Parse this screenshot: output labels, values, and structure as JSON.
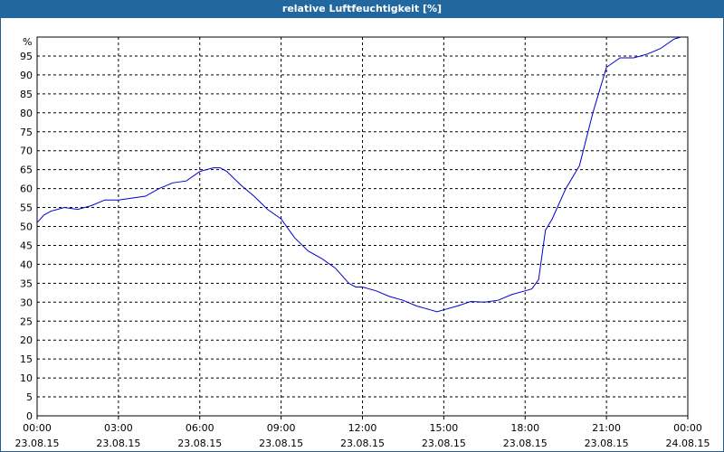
{
  "chart_data": {
    "type": "line",
    "title": "relative Luftfeuchtigkeit [%]",
    "y_unit": "%",
    "ylim": [
      0,
      100
    ],
    "yticks": [
      0,
      5,
      10,
      15,
      20,
      25,
      30,
      35,
      40,
      45,
      50,
      55,
      60,
      65,
      70,
      75,
      80,
      85,
      90,
      95
    ],
    "xlim": [
      "2015-08-23T00:00",
      "2015-08-24T00:00"
    ],
    "xticks": [
      {
        "time": "00:00",
        "date": "23.08.15"
      },
      {
        "time": "03:00",
        "date": "23.08.15"
      },
      {
        "time": "06:00",
        "date": "23.08.15"
      },
      {
        "time": "09:00",
        "date": "23.08.15"
      },
      {
        "time": "12:00",
        "date": "23.08.15"
      },
      {
        "time": "15:00",
        "date": "23.08.15"
      },
      {
        "time": "18:00",
        "date": "23.08.15"
      },
      {
        "time": "21:00",
        "date": "23.08.15"
      },
      {
        "time": "00:00",
        "date": "24.08.15"
      }
    ],
    "grid": true,
    "line_color": "#0000cc",
    "series": [
      {
        "x": [
          "00:00",
          "00:15",
          "00:30",
          "00:45",
          "01:00",
          "01:30",
          "02:00",
          "02:30",
          "03:00",
          "03:30",
          "04:00",
          "04:30",
          "05:00",
          "05:30",
          "06:00",
          "06:30",
          "06:45",
          "07:00",
          "07:30",
          "08:00",
          "08:30",
          "09:00",
          "09:30",
          "10:00",
          "10:30",
          "11:00",
          "11:30",
          "11:45",
          "12:00",
          "12:30",
          "13:00",
          "13:30",
          "14:00",
          "14:30",
          "14:45",
          "15:00",
          "15:30",
          "16:00",
          "16:30",
          "17:00",
          "17:30",
          "18:00",
          "18:15",
          "18:30",
          "18:45",
          "19:00",
          "19:30",
          "20:00",
          "20:30",
          "21:00",
          "21:30",
          "22:00",
          "22:30",
          "23:00",
          "23:30",
          "23:45"
        ],
        "y": [
          51,
          53,
          54,
          54.5,
          55,
          54.5,
          55.5,
          57,
          57,
          57.5,
          58,
          60,
          61.5,
          62,
          64.5,
          65.5,
          65.5,
          64.5,
          61,
          58,
          54.5,
          52,
          47,
          43.5,
          41.5,
          39,
          35,
          34,
          34,
          33,
          31.5,
          30.5,
          29,
          28,
          27.5,
          28,
          29,
          30.2,
          30,
          30.5,
          32,
          33,
          33.5,
          36,
          49,
          52,
          60,
          66,
          80,
          92,
          94.5,
          94.5,
          95.5,
          97,
          99.5,
          100
        ]
      }
    ]
  }
}
